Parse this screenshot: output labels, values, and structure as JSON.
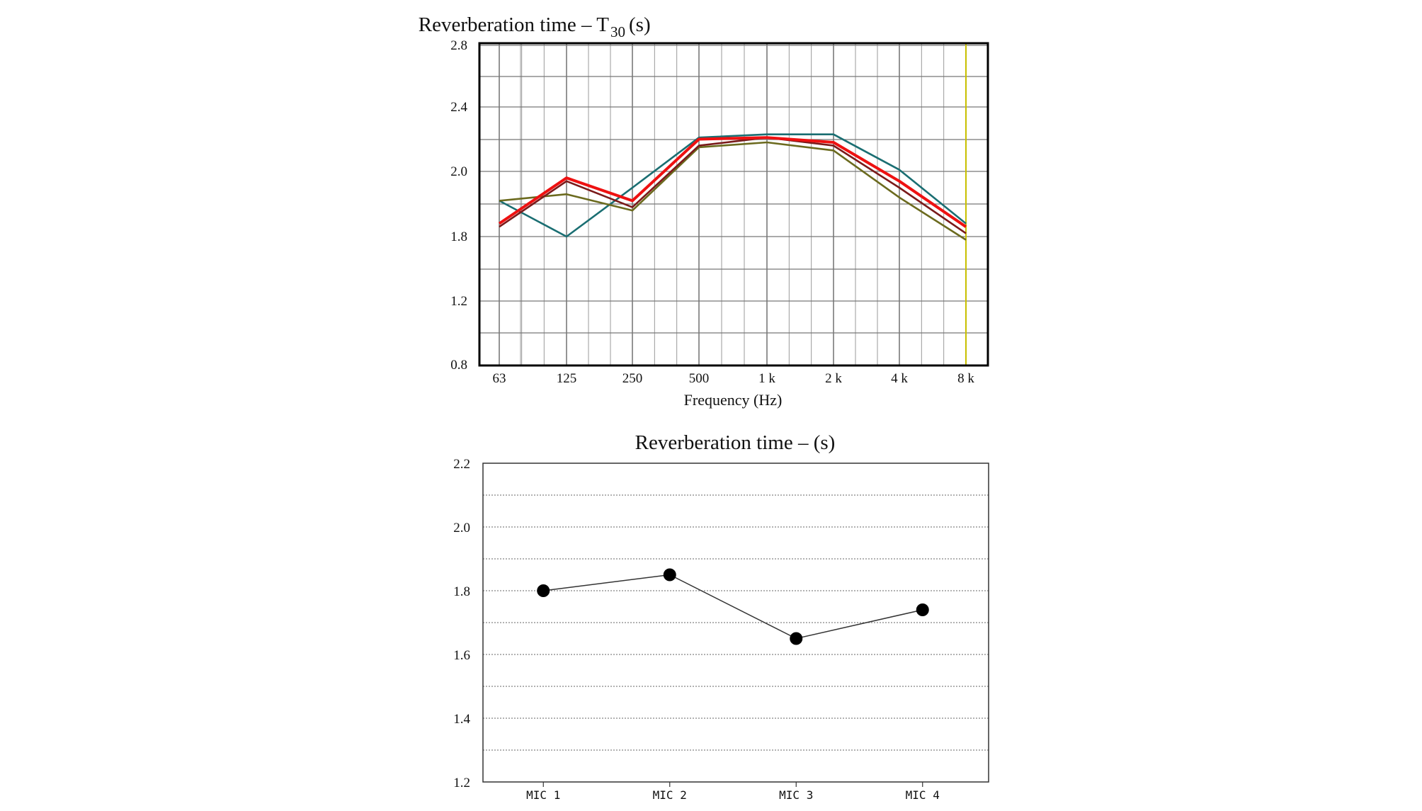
{
  "colors": {
    "series_teal": "#1a6e72",
    "series_olive": "#6b6a1e",
    "series_dark": "#7a1a1a",
    "series_red": "#ee1111",
    "marker_line": "#c8c000",
    "grid": "#777777",
    "frame": "#000000"
  },
  "chart_data": [
    {
      "type": "line",
      "title_main": "Reverberation time – T",
      "title_sub": "30",
      "title_unit": "(s)",
      "xlabel": "Frequency (Hz)",
      "ylabel": "",
      "categories": [
        "63",
        "125",
        "250",
        "500",
        "1 k",
        "2 k",
        "4 k",
        "8 k"
      ],
      "y_ticks": [
        "2.8",
        "2.4",
        "2.0",
        "1.8",
        "1.2",
        "0.8"
      ],
      "grid": true,
      "vertical_marker_at": "8 k",
      "series": [
        {
          "values": [
            1.91,
            1.8,
            1.95,
            2.21,
            2.23,
            2.23,
            2.01,
            1.84
          ],
          "color": "#1a6e72"
        },
        {
          "values": [
            1.91,
            1.93,
            1.88,
            2.15,
            2.18,
            2.13,
            1.92,
            1.77
          ],
          "color": "#6b6a1e"
        },
        {
          "values": [
            1.83,
            1.97,
            1.89,
            2.16,
            2.21,
            2.16,
            1.95,
            1.81
          ],
          "color": "#7a1a1a"
        },
        {
          "values": [
            1.84,
            1.98,
            1.91,
            2.2,
            2.21,
            2.18,
            1.97,
            1.83
          ],
          "color": "#ee1111"
        }
      ]
    },
    {
      "type": "line",
      "title": "Reverberation time – (s)",
      "xlabel": "",
      "ylabel": "",
      "categories": [
        "MIC 1",
        "MIC 2",
        "MIC 3",
        "MIC 4"
      ],
      "values": [
        1.8,
        1.85,
        1.65,
        1.74
      ],
      "ylim": [
        1.2,
        2.2
      ],
      "y_ticks": [
        "2.2",
        "2.0",
        "1.8",
        "1.6",
        "1.4",
        "1.2"
      ],
      "grid": true
    }
  ]
}
